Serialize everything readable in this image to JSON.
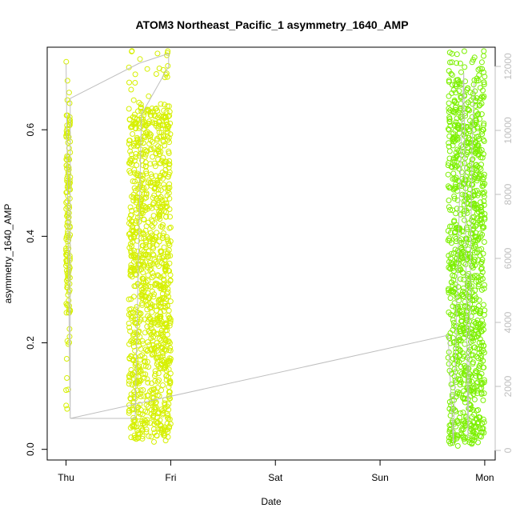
{
  "colors": {
    "left_series": "#d6f000",
    "right_series": "#7cf000",
    "secondary_line": "#bfbfbf",
    "axis": "#000000",
    "right_axis": "#bfbfbf"
  },
  "chart_data": {
    "type": "scatter",
    "title": "ATOM3 Northeast_Pacific_1 asymmetry_1640_AMP",
    "xlabel": "Date",
    "ylabel": "asymmetry_1640_AMP",
    "x_ticks": [
      "Thu",
      "Fri",
      "Sat",
      "Sun",
      "Mon"
    ],
    "x_tick_positions_days": [
      0,
      1,
      2,
      3,
      4
    ],
    "xlim_days": [
      -0.18,
      4.1
    ],
    "ylim": [
      -0.02,
      0.755
    ],
    "y_ticks": [
      0.0,
      0.2,
      0.4,
      0.6
    ],
    "y_tick_labels": [
      "0.0",
      "0.2",
      "0.4",
      "0.6"
    ],
    "y2lim": [
      -300,
      12600
    ],
    "y2_ticks": [
      0,
      2000,
      4000,
      6000,
      8000,
      10000,
      12000
    ],
    "y2_tick_labels": [
      "0",
      "2000",
      "4000",
      "6000",
      "8000",
      "10000",
      "12000"
    ],
    "grid": false,
    "legend": "none",
    "clusters": [
      {
        "x_range_days": [
          0.0,
          0.04
        ],
        "y_range": [
          0.05,
          0.73
        ],
        "points": 150,
        "dense_y": [
          0.25,
          0.63
        ],
        "color": "left_series"
      },
      {
        "x_range_days": [
          0.6,
          1.0
        ],
        "y_range": [
          0.01,
          0.75
        ],
        "points": 1100,
        "dense_y": [
          0.02,
          0.65
        ],
        "color": "left_series"
      },
      {
        "x_range_days": [
          3.65,
          4.0
        ],
        "y_range": [
          0.005,
          0.75
        ],
        "points": 1000,
        "dense_y": [
          0.01,
          0.7
        ],
        "color": "right_series"
      }
    ],
    "secondary_series": {
      "name": "",
      "color": "secondary_line",
      "points": [
        {
          "x_days": 0.0,
          "y2": 12100
        },
        {
          "x_days": 0.04,
          "y2": 1000
        },
        {
          "x_days": 0.04,
          "y2": 11000
        },
        {
          "x_days": 0.7,
          "y2": 12100
        },
        {
          "x_days": 0.98,
          "y2": 12400
        },
        {
          "x_days": 0.98,
          "y2": 12000
        },
        {
          "x_days": 0.72,
          "y2": 10500
        },
        {
          "x_days": 0.66,
          "y2": 1000
        },
        {
          "x_days": 0.04,
          "y2": 1000
        },
        {
          "x_days": 3.65,
          "y2": 3600
        },
        {
          "x_days": 3.7,
          "y2": 200
        },
        {
          "x_days": 3.76,
          "y2": 8000
        },
        {
          "x_days": 3.8,
          "y2": 11800
        },
        {
          "x_days": 3.84,
          "y2": 400
        },
        {
          "x_days": 3.88,
          "y2": 9500
        },
        {
          "x_days": 3.9,
          "y2": 11500
        }
      ]
    }
  }
}
